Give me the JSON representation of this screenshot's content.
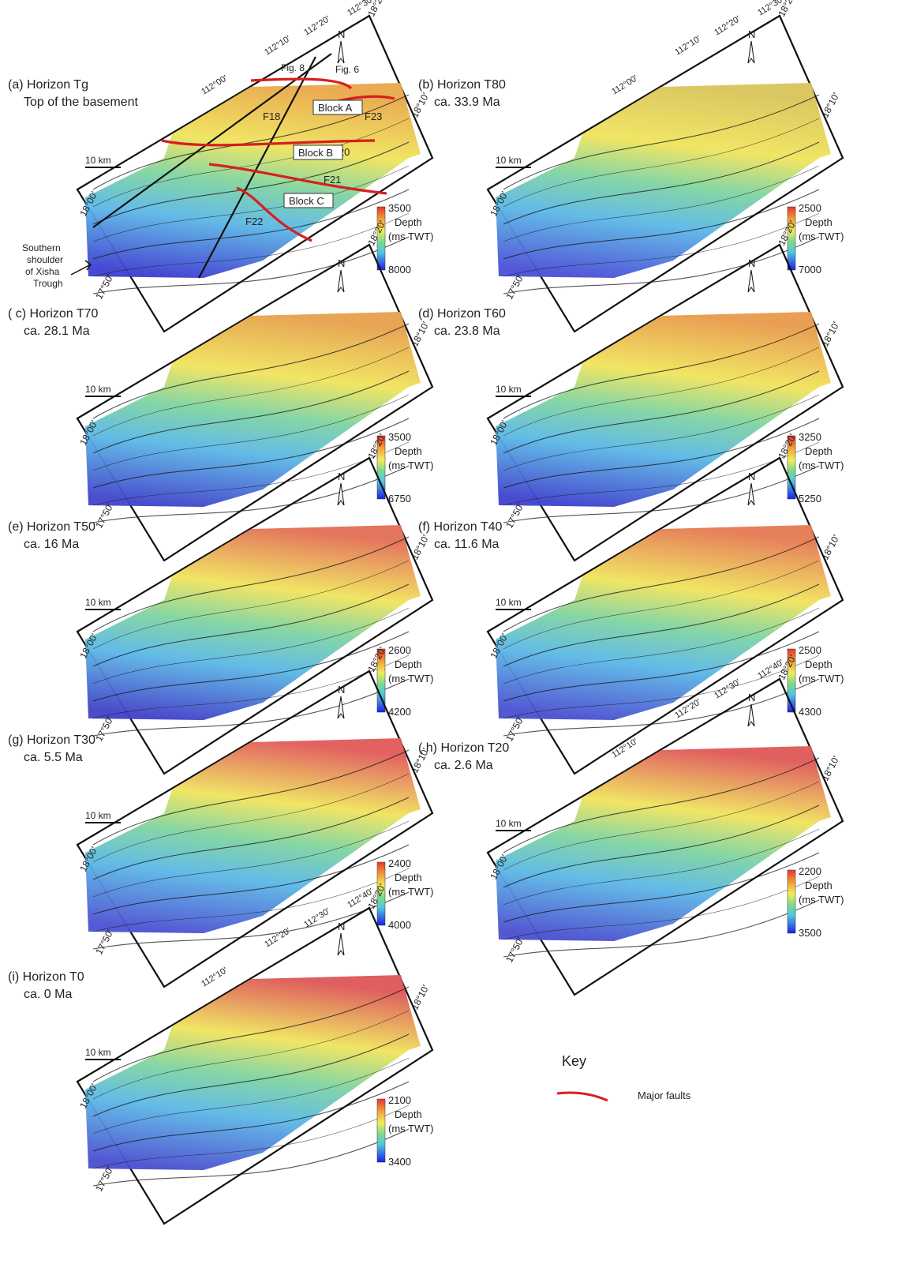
{
  "panels": [
    {
      "id": "a",
      "caption_line1": "(a) Horizon Tg",
      "caption_line2": "Top of the basement",
      "scale_label": "10 km",
      "north_label": "N",
      "legend": {
        "max": "3500",
        "min": "8000",
        "title1": "Depth",
        "title2": "(ms TWT)"
      },
      "lat_labels": [
        "18°20'",
        "18°10'",
        "18°00'",
        "17°50'"
      ],
      "lon_labels": [
        "112°00'",
        "112°10'",
        "112°20'",
        "112°30'"
      ],
      "palette_top": "#e8a84a",
      "palette_bottom": "#3d3fd0"
    },
    {
      "id": "b",
      "caption_line1": "(b) Horizon T80",
      "caption_line2": "ca. 33.9 Ma",
      "scale_label": "10 km",
      "north_label": "N",
      "legend": {
        "max": "2500",
        "min": "7000",
        "title1": "Depth",
        "title2": "(ms TWT)"
      },
      "lat_labels": [
        "18°20'",
        "18°10'",
        "18°00'",
        "17°50'"
      ],
      "lon_labels": [
        "112°00'",
        "112°10'",
        "112°20'",
        "112°30'"
      ],
      "palette_top": "#d9c45a",
      "palette_bottom": "#4a4fd6"
    },
    {
      "id": "c",
      "caption_line1": "( c) Horizon T70",
      "caption_line2": "ca. 28.1 Ma",
      "scale_label": "10 km",
      "north_label": "N",
      "legend": {
        "max": "3500",
        "min": "6750",
        "title1": "Depth",
        "title2": "(ms TWT)"
      },
      "lat_labels": [
        "18°20'",
        "18°10'",
        "18°00'",
        "17°50'"
      ],
      "lon_labels": [],
      "palette_top": "#e6a04c",
      "palette_bottom": "#4045cc"
    },
    {
      "id": "d",
      "caption_line1": "(d) Horizon T60",
      "caption_line2": "ca. 23.8 Ma",
      "scale_label": "10 km",
      "north_label": "N",
      "legend": {
        "max": "3250",
        "min": "5250",
        "title1": "Depth",
        "title2": "(ms TWT)"
      },
      "lat_labels": [
        "18°20'",
        "18°10'",
        "18°00'",
        "17°50'"
      ],
      "lon_labels": [],
      "palette_top": "#e89a4a",
      "palette_bottom": "#3e43ce"
    },
    {
      "id": "e",
      "caption_line1": "(e) Horizon T50",
      "caption_line2": "ca. 16 Ma",
      "scale_label": "10 km",
      "north_label": "N",
      "legend": {
        "max": "2600",
        "min": "4200",
        "title1": "Depth",
        "title2": "(ms TWT)"
      },
      "lat_labels": [
        "18°20'",
        "18°10'",
        "18°00'",
        "17°50'"
      ],
      "lon_labels": [],
      "palette_top": "#e36e55",
      "palette_bottom": "#4141c8"
    },
    {
      "id": "f",
      "caption_line1": "(f) Horizon T40",
      "caption_line2": "ca. 11.6 Ma",
      "scale_label": "10 km",
      "north_label": "N",
      "legend": {
        "max": "2500",
        "min": "4300",
        "title1": "Depth",
        "title2": "(ms TWT)"
      },
      "lat_labels": [
        "18°20'",
        "18°10'",
        "18°00'",
        "17°50'"
      ],
      "lon_labels": [],
      "palette_top": "#e57a52",
      "palette_bottom": "#4a4fd0"
    },
    {
      "id": "g",
      "caption_line1": "(g) Horizon T30",
      "caption_line2": "ca. 5.5 Ma",
      "scale_label": "10 km",
      "north_label": "N",
      "legend": {
        "max": "2400",
        "min": "4000",
        "title1": "Depth",
        "title2": "(ms TWT)"
      },
      "lat_labels": [
        "18°20'",
        "18°10'",
        "18°00'",
        "17°50'"
      ],
      "lon_labels": [],
      "palette_top": "#e05a5a",
      "palette_bottom": "#4c52d2"
    },
    {
      "id": "h",
      "caption_line1": "( h) Horizon T20",
      "caption_line2": "ca. 2.6 Ma",
      "scale_label": "10 km",
      "north_label": "N",
      "legend": {
        "max": "2200",
        "min": "3500",
        "title1": "Depth",
        "title2": "(ms TWT)"
      },
      "lat_labels": [
        "18°20'",
        "18°10'",
        "18°00'",
        "17°50'"
      ],
      "lon_labels": [
        "112°10'",
        "112°20'",
        "112°30'",
        "112°40'"
      ],
      "palette_top": "#df5858",
      "palette_bottom": "#4a4fd0"
    },
    {
      "id": "i",
      "caption_line1": "(i) Horizon T0",
      "caption_line2": "ca. 0 Ma",
      "scale_label": "10 km",
      "north_label": "N",
      "legend": {
        "max": "2100",
        "min": "3400",
        "title1": "Depth",
        "title2": "(ms TWT)"
      },
      "lat_labels": [
        "18°20'",
        "18°10'",
        "18°00'",
        "17°50'"
      ],
      "lon_labels": [
        "112°10'",
        "112°20'",
        "112°30'",
        "112°40'"
      ],
      "palette_top": "#dd5656",
      "palette_bottom": "#4a4fd0"
    }
  ],
  "panel_a_annotations": {
    "fig8": "Fig. 8",
    "fig6": "Fig. 6",
    "f18": "F18",
    "f20": "F20",
    "f21": "F21",
    "f22": "F22",
    "f23": "F23",
    "block_a": "Block A",
    "block_b": "Block B",
    "block_c": "Block C",
    "shoulder_1": "Southern",
    "shoulder_2": "shoulder",
    "shoulder_3": "of Xisha",
    "shoulder_4": "Trough"
  },
  "key": {
    "title": "Key",
    "fault_label": "Major faults",
    "fault_color": "#d62020"
  }
}
